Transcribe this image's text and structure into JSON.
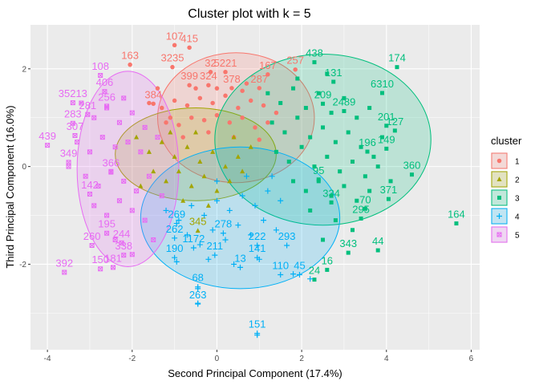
{
  "chart_data": {
    "type": "scatter",
    "title": "Cluster plot with k = 5",
    "xlabel": "Second Principal Component (17.4%)",
    "ylabel": "Third Principal Component (16.0%)",
    "xlim": [
      -4.4,
      6.2
    ],
    "ylim": [
      -3.75,
      2.9
    ],
    "x_ticks": [
      -4,
      -2,
      0,
      2,
      4,
      6
    ],
    "y_ticks": [
      -2,
      0,
      2
    ],
    "grid": true,
    "background": "#ebebeb",
    "legend": {
      "title": "cluster",
      "placement": "right",
      "entries": [
        "1",
        "2",
        "3",
        "4",
        "5"
      ]
    },
    "series": [
      {
        "name": "1",
        "color": "#f8766d",
        "marker": "circle",
        "ellipse": {
          "cx": 0.45,
          "cy": 1.0,
          "rx": 1.85,
          "ry": 1.33
        },
        "labeled_points": [
          {
            "label": "107",
            "x": -1.0,
            "y": 2.6
          },
          {
            "label": "415",
            "x": -0.65,
            "y": 2.55
          },
          {
            "label": "163",
            "x": -2.05,
            "y": 2.2
          },
          {
            "label": "3235",
            "x": -1.05,
            "y": 2.15
          },
          {
            "label": "32",
            "x": -0.15,
            "y": 2.05
          },
          {
            "label": "5221",
            "x": 0.2,
            "y": 2.05
          },
          {
            "label": "167",
            "x": 1.2,
            "y": 2.0
          },
          {
            "label": "257",
            "x": 1.85,
            "y": 2.1
          },
          {
            "label": "399",
            "x": -0.65,
            "y": 1.78
          },
          {
            "label": "324",
            "x": -0.2,
            "y": 1.78
          },
          {
            "label": "378",
            "x": 0.35,
            "y": 1.72
          },
          {
            "label": "287",
            "x": 1.0,
            "y": 1.72
          },
          {
            "label": "384",
            "x": -1.5,
            "y": 1.4
          }
        ],
        "points": [
          [
            -1.6,
            1.3
          ],
          [
            -1.3,
            1.2
          ],
          [
            -1.0,
            1.35
          ],
          [
            -0.7,
            1.25
          ],
          [
            -0.4,
            1.4
          ],
          [
            -0.1,
            1.3
          ],
          [
            0.2,
            1.45
          ],
          [
            0.5,
            1.2
          ],
          [
            0.8,
            1.35
          ],
          [
            1.1,
            1.25
          ],
          [
            1.4,
            1.1
          ],
          [
            -1.2,
            0.9
          ],
          [
            -0.9,
            0.85
          ],
          [
            -0.6,
            1.0
          ],
          [
            -0.3,
            0.95
          ],
          [
            0.0,
            1.05
          ],
          [
            0.3,
            0.9
          ],
          [
            0.6,
            1.0
          ],
          [
            0.9,
            0.8
          ],
          [
            1.2,
            0.9
          ],
          [
            -0.5,
            1.6
          ],
          [
            0.0,
            1.6
          ],
          [
            0.6,
            1.55
          ],
          [
            -1.4,
            1.6
          ],
          [
            -0.8,
            0.6
          ],
          [
            0.4,
            0.6
          ],
          [
            1.0,
            0.55
          ],
          [
            -0.2,
            0.7
          ],
          [
            0.7,
            1.7
          ],
          [
            -1.1,
            1.0
          ]
        ]
      },
      {
        "name": "2",
        "color": "#a3a500",
        "marker": "triangle",
        "ellipse": {
          "cx": -0.5,
          "cy": 0.25,
          "rx": 1.9,
          "ry": 0.95
        },
        "labeled_points": [
          {
            "label": "345",
            "x": -0.45,
            "y": -1.2
          }
        ],
        "points": [
          [
            -1.9,
            0.6
          ],
          [
            -1.6,
            0.3
          ],
          [
            -1.3,
            0.5
          ],
          [
            -1.0,
            0.2
          ],
          [
            -0.7,
            0.4
          ],
          [
            -0.4,
            0.1
          ],
          [
            -0.1,
            0.3
          ],
          [
            0.2,
            0.0
          ],
          [
            0.5,
            0.2
          ],
          [
            0.8,
            0.4
          ],
          [
            -1.5,
            -0.1
          ],
          [
            -1.2,
            -0.3
          ],
          [
            -0.9,
            -0.1
          ],
          [
            -0.6,
            -0.4
          ],
          [
            -0.3,
            -0.2
          ],
          [
            0.0,
            -0.5
          ],
          [
            0.3,
            -0.3
          ],
          [
            -1.8,
            -0.4
          ],
          [
            -1.1,
            0.7
          ],
          [
            -0.5,
            0.7
          ],
          [
            0.4,
            0.6
          ],
          [
            -0.8,
            -0.7
          ],
          [
            -0.2,
            -0.8
          ],
          [
            0.6,
            -0.1
          ]
        ]
      },
      {
        "name": "3",
        "color": "#00bf7d",
        "marker": "square",
        "ellipse": {
          "cx": 2.5,
          "cy": 0.55,
          "rx": 2.55,
          "ry": 1.75
        },
        "labeled_points": [
          {
            "label": "438",
            "x": 2.3,
            "y": 2.25
          },
          {
            "label": "174",
            "x": 4.25,
            "y": 2.15
          },
          {
            "label": "131",
            "x": 2.75,
            "y": 1.85
          },
          {
            "label": "6310",
            "x": 3.9,
            "y": 1.62
          },
          {
            "label": "209",
            "x": 2.5,
            "y": 1.4
          },
          {
            "label": "2489",
            "x": 3.0,
            "y": 1.25
          },
          {
            "label": "201",
            "x": 4.0,
            "y": 0.95
          },
          {
            "label": "127",
            "x": 4.2,
            "y": 0.85
          },
          {
            "label": "196",
            "x": 3.55,
            "y": 0.42
          },
          {
            "label": "149",
            "x": 4.0,
            "y": 0.48
          },
          {
            "label": "95",
            "x": 2.4,
            "y": -0.15
          },
          {
            "label": "360",
            "x": 4.6,
            "y": -0.05
          },
          {
            "label": "371",
            "x": 4.05,
            "y": -0.55
          },
          {
            "label": "334",
            "x": 2.7,
            "y": -0.62
          },
          {
            "label": "70",
            "x": 3.5,
            "y": -0.75
          },
          {
            "label": "295",
            "x": 3.4,
            "y": -0.95
          },
          {
            "label": "343",
            "x": 3.1,
            "y": -1.65
          },
          {
            "label": "44",
            "x": 3.8,
            "y": -1.6
          },
          {
            "label": "164",
            "x": 5.65,
            "y": -1.05
          },
          {
            "label": "16",
            "x": 2.6,
            "y": -2.0
          },
          {
            "label": "24",
            "x": 2.3,
            "y": -2.2
          }
        ],
        "points": [
          [
            1.2,
            1.5
          ],
          [
            1.5,
            1.3
          ],
          [
            1.8,
            1.6
          ],
          [
            2.1,
            1.2
          ],
          [
            2.4,
            1.5
          ],
          [
            2.7,
            1.1
          ],
          [
            3.0,
            1.4
          ],
          [
            3.3,
            1.0
          ],
          [
            3.6,
            1.2
          ],
          [
            1.3,
            0.9
          ],
          [
            1.6,
            0.7
          ],
          [
            1.9,
            1.0
          ],
          [
            2.2,
            0.6
          ],
          [
            2.5,
            0.8
          ],
          [
            2.8,
            0.5
          ],
          [
            3.1,
            0.7
          ],
          [
            3.4,
            0.4
          ],
          [
            3.7,
            0.2
          ],
          [
            1.4,
            0.3
          ],
          [
            1.7,
            0.1
          ],
          [
            2.0,
            0.4
          ],
          [
            2.3,
            0.0
          ],
          [
            2.6,
            0.2
          ],
          [
            2.9,
            -0.1
          ],
          [
            3.2,
            0.1
          ],
          [
            3.5,
            -0.2
          ],
          [
            3.8,
            0.0
          ],
          [
            1.8,
            -0.3
          ],
          [
            2.1,
            -0.5
          ],
          [
            2.4,
            -0.3
          ],
          [
            2.7,
            -0.6
          ],
          [
            3.0,
            -0.4
          ],
          [
            3.3,
            -0.7
          ],
          [
            3.6,
            -0.5
          ],
          [
            2.2,
            -0.9
          ],
          [
            2.8,
            -1.1
          ],
          [
            3.2,
            -1.3
          ],
          [
            2.5,
            -1.5
          ],
          [
            1.9,
            1.8
          ],
          [
            2.6,
            1.9
          ],
          [
            3.9,
            0.6
          ],
          [
            4.1,
            -0.3
          ]
        ]
      },
      {
        "name": "4",
        "color": "#00b0f6",
        "marker": "plus",
        "ellipse": {
          "cx": 0.55,
          "cy": -1.05,
          "rx": 2.35,
          "ry": 1.45
        },
        "labeled_points": [
          {
            "label": "269",
            "x": -0.95,
            "y": -1.05
          },
          {
            "label": "262",
            "x": -1.0,
            "y": -1.35
          },
          {
            "label": "190",
            "x": -1.0,
            "y": -1.75
          },
          {
            "label": "1172",
            "x": -0.55,
            "y": -1.55
          },
          {
            "label": "211",
            "x": -0.05,
            "y": -1.7
          },
          {
            "label": "278",
            "x": 0.15,
            "y": -1.25
          },
          {
            "label": "222",
            "x": 0.95,
            "y": -1.5
          },
          {
            "label": "293",
            "x": 1.65,
            "y": -1.5
          },
          {
            "label": "141",
            "x": 0.95,
            "y": -1.75
          },
          {
            "label": "13",
            "x": 0.55,
            "y": -1.95
          },
          {
            "label": "110",
            "x": 1.5,
            "y": -2.1
          },
          {
            "label": "45",
            "x": 1.95,
            "y": -2.1
          },
          {
            "label": "68",
            "x": -0.45,
            "y": -2.35
          },
          {
            "label": "263",
            "x": -0.45,
            "y": -2.7
          },
          {
            "label": "151",
            "x": 0.95,
            "y": -3.3
          }
        ],
        "points": [
          [
            -1.2,
            -0.9
          ],
          [
            -0.9,
            -1.1
          ],
          [
            -0.6,
            -0.8
          ],
          [
            -0.3,
            -1.0
          ],
          [
            0.0,
            -0.7
          ],
          [
            0.3,
            -0.9
          ],
          [
            0.6,
            -0.6
          ],
          [
            0.9,
            -0.8
          ],
          [
            1.2,
            -0.5
          ],
          [
            1.5,
            -0.7
          ],
          [
            -0.7,
            -1.4
          ],
          [
            -0.4,
            -1.6
          ],
          [
            -0.1,
            -1.3
          ],
          [
            0.2,
            -1.5
          ],
          [
            0.5,
            -1.2
          ],
          [
            0.8,
            -1.4
          ],
          [
            1.1,
            -1.1
          ],
          [
            1.4,
            -1.3
          ],
          [
            -0.2,
            -1.9
          ],
          [
            0.4,
            -2.0
          ],
          [
            1.0,
            -1.9
          ],
          [
            1.8,
            -2.2
          ],
          [
            2.2,
            -2.3
          ],
          [
            -0.45,
            -2.5
          ],
          [
            -0.45,
            -2.8
          ],
          [
            0.95,
            -3.45
          ],
          [
            -0.95,
            -1.95
          ],
          [
            0.0,
            -0.3
          ],
          [
            0.7,
            -0.2
          ],
          [
            1.3,
            -0.2
          ]
        ]
      },
      {
        "name": "5",
        "color": "#e76bf3",
        "marker": "boxx",
        "ellipse": {
          "cx": -2.1,
          "cy": -0.05,
          "rx": 1.2,
          "ry": 2.0
        },
        "labeled_points": [
          {
            "label": "108",
            "x": -2.75,
            "y": 1.98
          },
          {
            "label": "406",
            "x": -2.65,
            "y": 1.65
          },
          {
            "label": "35213",
            "x": -3.4,
            "y": 1.42
          },
          {
            "label": "256",
            "x": -2.6,
            "y": 1.35
          },
          {
            "label": "281",
            "x": -3.05,
            "y": 1.18
          },
          {
            "label": "283",
            "x": -3.4,
            "y": 1.0
          },
          {
            "label": "307",
            "x": -3.35,
            "y": 0.75
          },
          {
            "label": "439",
            "x": -4.0,
            "y": 0.55
          },
          {
            "label": "349",
            "x": -3.5,
            "y": 0.2
          },
          {
            "label": "366",
            "x": -2.5,
            "y": 0.0
          },
          {
            "label": "142",
            "x": -3.0,
            "y": -0.45
          },
          {
            "label": "195",
            "x": -2.6,
            "y": -1.25
          },
          {
            "label": "244",
            "x": -2.25,
            "y": -1.45
          },
          {
            "label": "260",
            "x": -2.95,
            "y": -1.5
          },
          {
            "label": "338",
            "x": -2.2,
            "y": -1.7
          },
          {
            "label": "150",
            "x": -2.75,
            "y": -1.98
          },
          {
            "label": "181",
            "x": -2.45,
            "y": -1.95
          },
          {
            "label": "392",
            "x": -3.6,
            "y": -2.05
          }
        ],
        "points": [
          [
            -3.2,
            1.3
          ],
          [
            -2.9,
            1.0
          ],
          [
            -2.6,
            1.2
          ],
          [
            -2.3,
            0.9
          ],
          [
            -2.0,
            1.1
          ],
          [
            -1.7,
            0.8
          ],
          [
            -3.3,
            0.5
          ],
          [
            -3.0,
            0.3
          ],
          [
            -2.7,
            0.6
          ],
          [
            -2.4,
            0.4
          ],
          [
            -2.1,
            0.5
          ],
          [
            -1.8,
            0.3
          ],
          [
            -3.1,
            -0.2
          ],
          [
            -2.8,
            -0.4
          ],
          [
            -2.5,
            -0.1
          ],
          [
            -2.2,
            -0.3
          ],
          [
            -1.9,
            -0.5
          ],
          [
            -1.6,
            -0.2
          ],
          [
            -2.9,
            -0.8
          ],
          [
            -2.6,
            -1.0
          ],
          [
            -2.3,
            -0.7
          ],
          [
            -2.0,
            -0.9
          ],
          [
            -1.7,
            -1.1
          ],
          [
            -2.4,
            -1.5
          ],
          [
            -2.0,
            -1.8
          ],
          [
            -1.5,
            -1.5
          ],
          [
            -1.4,
            0.6
          ],
          [
            -2.2,
            1.4
          ],
          [
            -3.5,
            0.0
          ],
          [
            -1.3,
            -0.6
          ]
        ]
      }
    ]
  }
}
